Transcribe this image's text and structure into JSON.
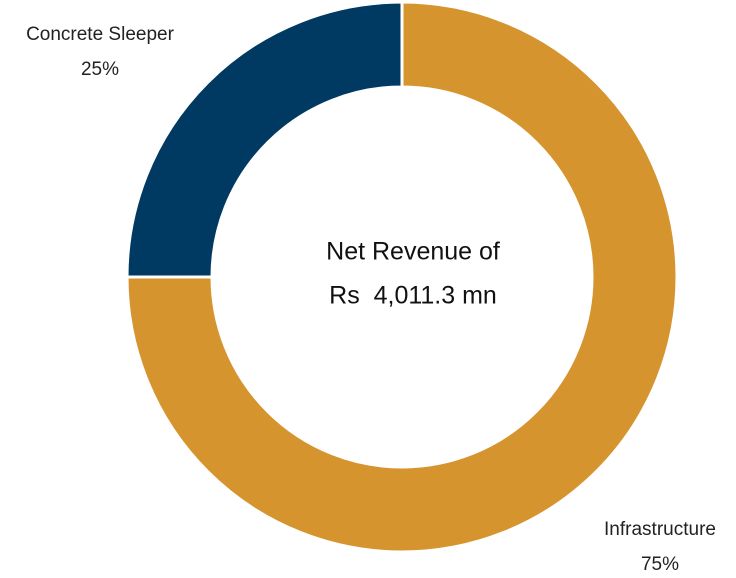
{
  "chart_data": {
    "type": "donut",
    "categories": [
      "Infrastructure",
      "Concrete Sleeper"
    ],
    "values": [
      75,
      25
    ],
    "value_labels": [
      "75%",
      "25%"
    ],
    "colors": [
      "#d6942f",
      "#003a63"
    ],
    "center_text": [
      "Net Revenue of",
      "Rs  4,011.3 mn"
    ]
  }
}
